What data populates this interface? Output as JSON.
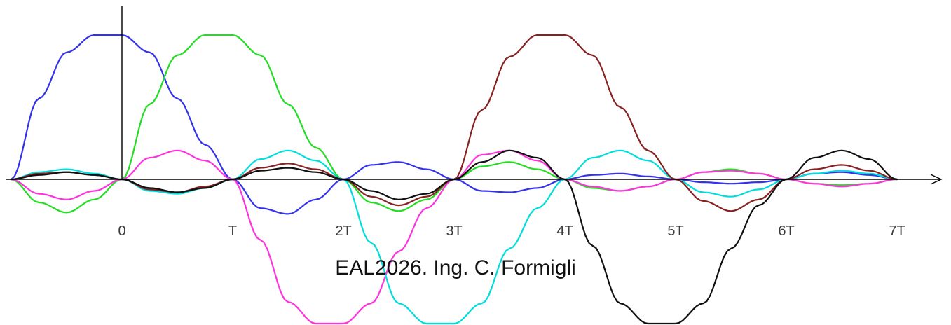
{
  "chart_data": {
    "type": "line",
    "x_ticks": [
      {
        "x": 0,
        "label": "0"
      },
      {
        "x": 1,
        "label": "T"
      },
      {
        "x": 2,
        "label": "2T"
      },
      {
        "x": 3,
        "label": "3T"
      },
      {
        "x": 4,
        "label": "4T"
      },
      {
        "x": 5,
        "label": "5T"
      },
      {
        "x": 6,
        "label": "6T"
      },
      {
        "x": 7,
        "label": "7T"
      }
    ],
    "xlim": [
      -1,
      7
    ],
    "ylim": [
      -1,
      1
    ],
    "grid": false,
    "series": [
      {
        "color": "#3333ee",
        "x": [
          -1,
          -0.75,
          -0.5,
          -0.25,
          0,
          0.25,
          0.5,
          0.75,
          1,
          1.25,
          1.5,
          1.75,
          2,
          2.25,
          2.5,
          2.75,
          3,
          3.25,
          3.5,
          3.75,
          4,
          4.25,
          4.5,
          4.75,
          5,
          5.25,
          5.5,
          5.75,
          6,
          6.25,
          6.5,
          6.75,
          7
        ],
        "y": [
          0,
          0.56,
          0.88,
          1.0,
          1.0,
          0.88,
          0.56,
          0.24,
          0,
          -0.2,
          -0.24,
          -0.14,
          0,
          0.1,
          0.12,
          0.07,
          0,
          -0.08,
          -0.09,
          -0.06,
          0,
          0.03,
          0.04,
          0.02,
          0,
          -0.02,
          -0.03,
          -0.02,
          0,
          0.04,
          0.05,
          0.03,
          0
        ]
      },
      {
        "color": "#22dd22",
        "x": [
          -1,
          -0.75,
          -0.5,
          -0.25,
          0,
          0.25,
          0.5,
          0.75,
          1,
          1.25,
          1.5,
          1.75,
          2,
          2.25,
          2.5,
          2.75,
          3,
          3.25,
          3.5,
          3.75,
          4,
          4.25,
          4.5,
          4.75,
          5,
          5.25,
          5.5,
          5.75,
          6,
          6.25,
          6.5,
          6.75,
          7
        ],
        "y": [
          0,
          -0.16,
          -0.23,
          -0.14,
          0,
          0.52,
          0.86,
          1.0,
          1.0,
          0.86,
          0.52,
          0.22,
          0,
          -0.16,
          -0.22,
          -0.14,
          0,
          0.09,
          0.12,
          0.07,
          0,
          -0.06,
          -0.08,
          -0.05,
          0,
          0.05,
          0.07,
          0.04,
          0,
          -0.03,
          -0.04,
          -0.03,
          0
        ]
      },
      {
        "color": "#ff33dd",
        "x": [
          -1,
          -0.75,
          -0.5,
          -0.25,
          0,
          0.25,
          0.5,
          0.75,
          1,
          1.25,
          1.5,
          1.75,
          2,
          2.25,
          2.5,
          2.75,
          3,
          3.25,
          3.5,
          3.75,
          4,
          4.25,
          4.5,
          4.75,
          5,
          5.25,
          5.5,
          5.75,
          6,
          6.25,
          6.5,
          6.75,
          7
        ],
        "y": [
          0,
          -0.1,
          -0.14,
          -0.08,
          0,
          0.15,
          0.2,
          0.13,
          0,
          -0.42,
          -0.85,
          -1.0,
          -1.0,
          -0.86,
          -0.5,
          -0.2,
          0,
          0.17,
          0.2,
          0.13,
          0,
          -0.05,
          -0.08,
          -0.05,
          0,
          0.05,
          0.06,
          0.04,
          0,
          -0.03,
          -0.05,
          -0.03,
          0
        ]
      },
      {
        "color": "#00dddd",
        "x": [
          -1,
          -0.75,
          -0.5,
          -0.25,
          0,
          0.25,
          0.5,
          0.75,
          1,
          1.25,
          1.5,
          1.75,
          2,
          2.25,
          2.5,
          2.75,
          3,
          3.25,
          3.5,
          3.75,
          4,
          4.25,
          4.5,
          4.75,
          5,
          5.25,
          5.5,
          5.75,
          6,
          6.25,
          6.5,
          6.75,
          7
        ],
        "y": [
          0,
          0.05,
          0.07,
          0.04,
          0,
          -0.08,
          -0.1,
          -0.06,
          0,
          0.14,
          0.2,
          0.13,
          0,
          -0.44,
          -0.86,
          -1.0,
          -1.0,
          -0.86,
          -0.48,
          -0.2,
          0,
          0.15,
          0.2,
          0.13,
          0,
          -0.09,
          -0.12,
          -0.07,
          0,
          0.04,
          0.06,
          0.04,
          0
        ]
      },
      {
        "color": "#882222",
        "x": [
          -1,
          -0.75,
          -0.5,
          -0.25,
          0,
          0.25,
          0.5,
          0.75,
          1,
          1.25,
          1.5,
          1.75,
          2,
          2.25,
          2.5,
          2.75,
          3,
          3.25,
          3.5,
          3.75,
          4,
          4.25,
          4.5,
          4.75,
          5,
          5.25,
          5.5,
          5.75,
          6,
          6.25,
          6.5,
          6.75,
          7
        ],
        "y": [
          0,
          0.04,
          0.05,
          0.03,
          0,
          -0.07,
          -0.09,
          -0.05,
          0,
          0.08,
          0.11,
          0.07,
          0,
          -0.12,
          -0.18,
          -0.12,
          0,
          0.48,
          0.85,
          1.0,
          1.0,
          0.86,
          0.5,
          0.2,
          0,
          -0.15,
          -0.22,
          -0.14,
          0,
          0.07,
          0.1,
          0.06,
          0
        ]
      },
      {
        "color": "#111111",
        "x": [
          -1,
          -0.75,
          -0.5,
          -0.25,
          0,
          0.25,
          0.5,
          0.75,
          1,
          1.25,
          1.5,
          1.75,
          2,
          2.25,
          2.5,
          2.75,
          3,
          3.25,
          3.5,
          3.75,
          4,
          4.25,
          4.5,
          4.75,
          5,
          5.25,
          5.5,
          5.75,
          6,
          6.25,
          6.5,
          6.75,
          7
        ],
        "y": [
          0,
          0.03,
          0.05,
          0.03,
          0,
          -0.06,
          -0.09,
          -0.06,
          0,
          0.06,
          0.08,
          0.05,
          0,
          -0.08,
          -0.14,
          -0.1,
          0,
          0.12,
          0.2,
          0.15,
          0,
          -0.46,
          -0.86,
          -1.0,
          -1.0,
          -0.86,
          -0.48,
          -0.18,
          0,
          0.15,
          0.2,
          0.14,
          0
        ]
      }
    ]
  },
  "annotation": {
    "credit": "EAL2026. Ing. C. Formigli"
  }
}
